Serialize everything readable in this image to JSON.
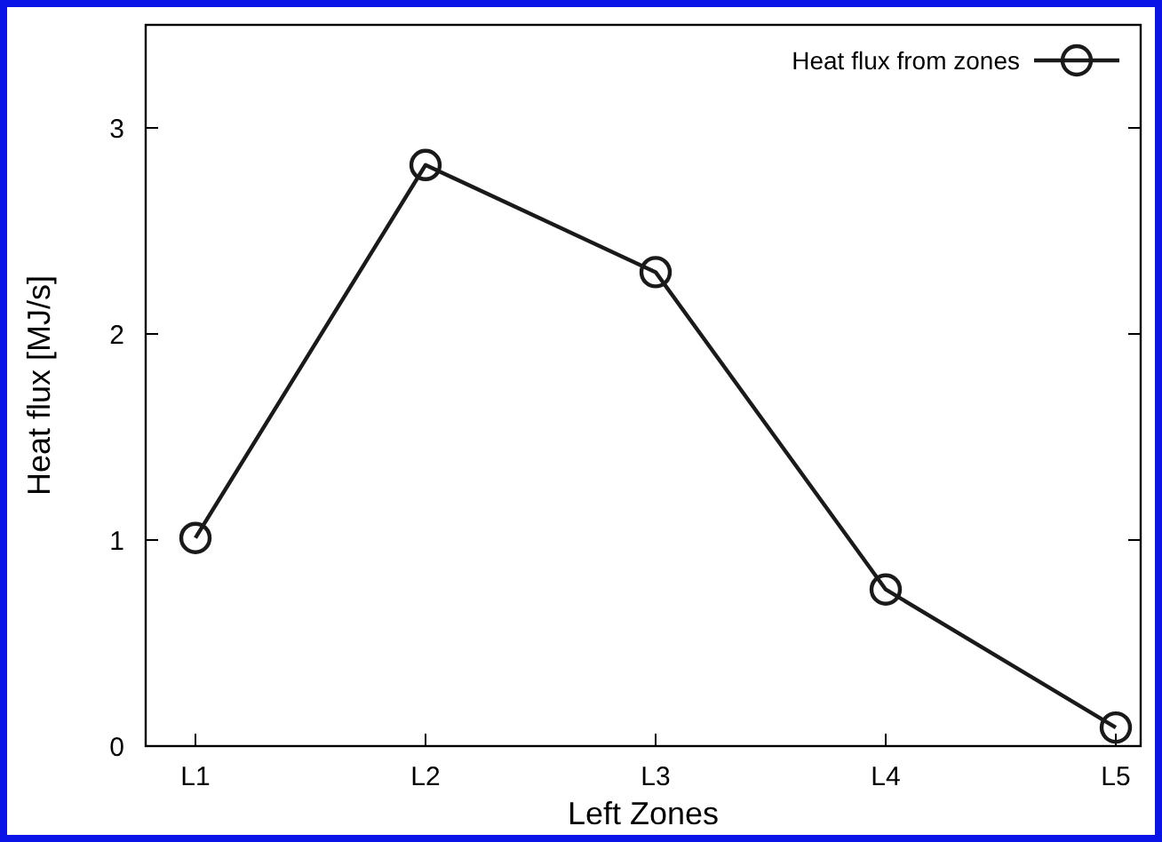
{
  "chart_data": {
    "type": "line",
    "xlabel": "Left Zones",
    "ylabel": "Heat flux [MJ/s]",
    "categories": [
      "L1",
      "L2",
      "L3",
      "L4",
      "L5"
    ],
    "series": [
      {
        "name": "Heat flux from zones",
        "color": "#1a1a1a",
        "values": [
          1.01,
          2.82,
          2.3,
          0.76,
          0.09
        ]
      }
    ],
    "ylim": [
      0,
      3.5
    ],
    "yticks": [
      0,
      1,
      2,
      3
    ],
    "grid": false,
    "legend": "top right",
    "marker": "circle",
    "line_style": "solid"
  }
}
